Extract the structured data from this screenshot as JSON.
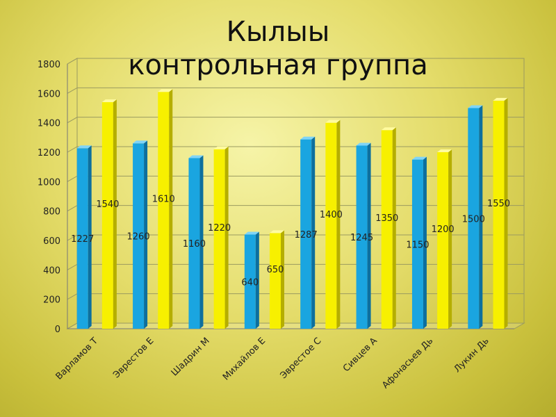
{
  "title_lines": [
    "Кылыы",
    "контрольная группа"
  ],
  "colors": {
    "series_a": "#1aa5e0",
    "series_a_top": "#7fd4f7",
    "series_a_side": "#0d6f9e",
    "series_b": "#f7f000",
    "series_b_top": "#fffba0",
    "series_b_side": "#b5ae00"
  },
  "chart_data": {
    "type": "bar",
    "categories": [
      "Варламов Т",
      "Эврестов Е",
      "Шадрин М",
      "Михайлов Е",
      "Эврестое С",
      "Сивцев А",
      "Афонасьев Дь",
      "Лукин Дь"
    ],
    "series": [
      {
        "values": [
          1227,
          1260,
          1160,
          640,
          1287,
          1245,
          1150,
          1500
        ]
      },
      {
        "values": [
          1540,
          1610,
          1220,
          650,
          1400,
          1350,
          1200,
          1550
        ]
      }
    ],
    "yticks": [
      "0",
      "200",
      "400",
      "600",
      "800",
      "1000",
      "1200",
      "1400",
      "1600",
      "1800"
    ],
    "ylim": [
      0,
      1800
    ],
    "grid": true,
    "legend": "none"
  }
}
